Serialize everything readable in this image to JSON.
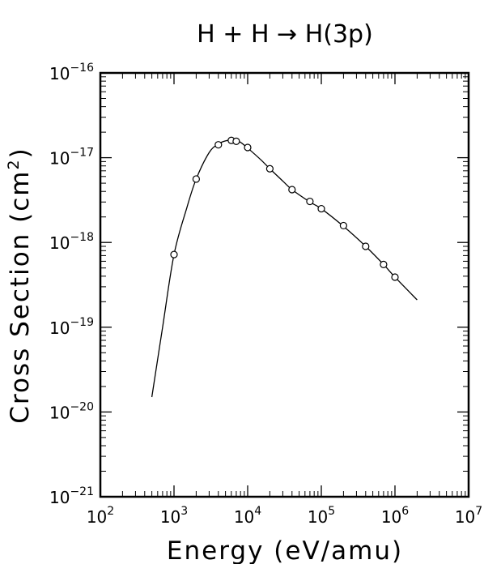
{
  "chart_data": {
    "type": "line",
    "title": "H + H → H(3p)",
    "xlabel": "Energy (eV/amu)",
    "ylabel": "Cross Section (cm",
    "ylabel_sup": "2",
    "ylabel_close": ")",
    "x_scale": "log",
    "y_scale": "log",
    "xlim": [
      100,
      10000000
    ],
    "ylim": [
      1e-21,
      1e-16
    ],
    "grid": false,
    "x_ticks": [
      {
        "base": "10",
        "exp": "2",
        "value": 100
      },
      {
        "base": "10",
        "exp": "3",
        "value": 1000
      },
      {
        "base": "10",
        "exp": "4",
        "value": 10000
      },
      {
        "base": "10",
        "exp": "5",
        "value": 100000
      },
      {
        "base": "10",
        "exp": "6",
        "value": 1000000
      },
      {
        "base": "10",
        "exp": "7",
        "value": 10000000
      }
    ],
    "y_ticks": [
      {
        "base": "10",
        "exp": "−16",
        "value": 1e-16
      },
      {
        "base": "10",
        "exp": "−17",
        "value": 1e-17
      },
      {
        "base": "10",
        "exp": "−18",
        "value": 1e-18
      },
      {
        "base": "10",
        "exp": "−19",
        "value": 1e-19
      },
      {
        "base": "10",
        "exp": "−20",
        "value": 1e-20
      },
      {
        "base": "10",
        "exp": "−21",
        "value": 1e-21
      }
    ],
    "series": [
      {
        "kind": "fit-curve",
        "x": [
          500,
          700,
          1000,
          1500,
          2000,
          3000,
          4000,
          5000,
          6000,
          7000,
          8000,
          10000,
          15000,
          20000,
          30000,
          40000,
          70000,
          100000,
          200000,
          400000,
          700000,
          1000000,
          2000000
        ],
        "y": [
          1.5e-20,
          1e-19,
          7.2e-19,
          2.6e-18,
          5.6e-18,
          1.15e-17,
          1.45e-17,
          1.58e-17,
          1.62e-17,
          1.6e-17,
          1.52e-17,
          1.3e-17,
          9.5e-18,
          7.4e-18,
          5.3e-18,
          4.2e-18,
          3e-18,
          2.5e-18,
          1.55e-18,
          9e-19,
          5.5e-19,
          3.9e-19,
          2.1e-19
        ]
      },
      {
        "kind": "data-points",
        "marker": "open-circle",
        "x": [
          1000,
          2000,
          4000,
          6000,
          7000,
          10000,
          20000,
          40000,
          70000,
          100000,
          200000,
          400000,
          700000,
          1000000
        ],
        "y": [
          7.2e-19,
          5.6e-18,
          1.42e-17,
          1.6e-17,
          1.56e-17,
          1.32e-17,
          7.4e-18,
          4.2e-18,
          3.05e-18,
          2.5e-18,
          1.58e-18,
          9e-19,
          5.5e-19,
          3.9e-19
        ]
      }
    ]
  }
}
